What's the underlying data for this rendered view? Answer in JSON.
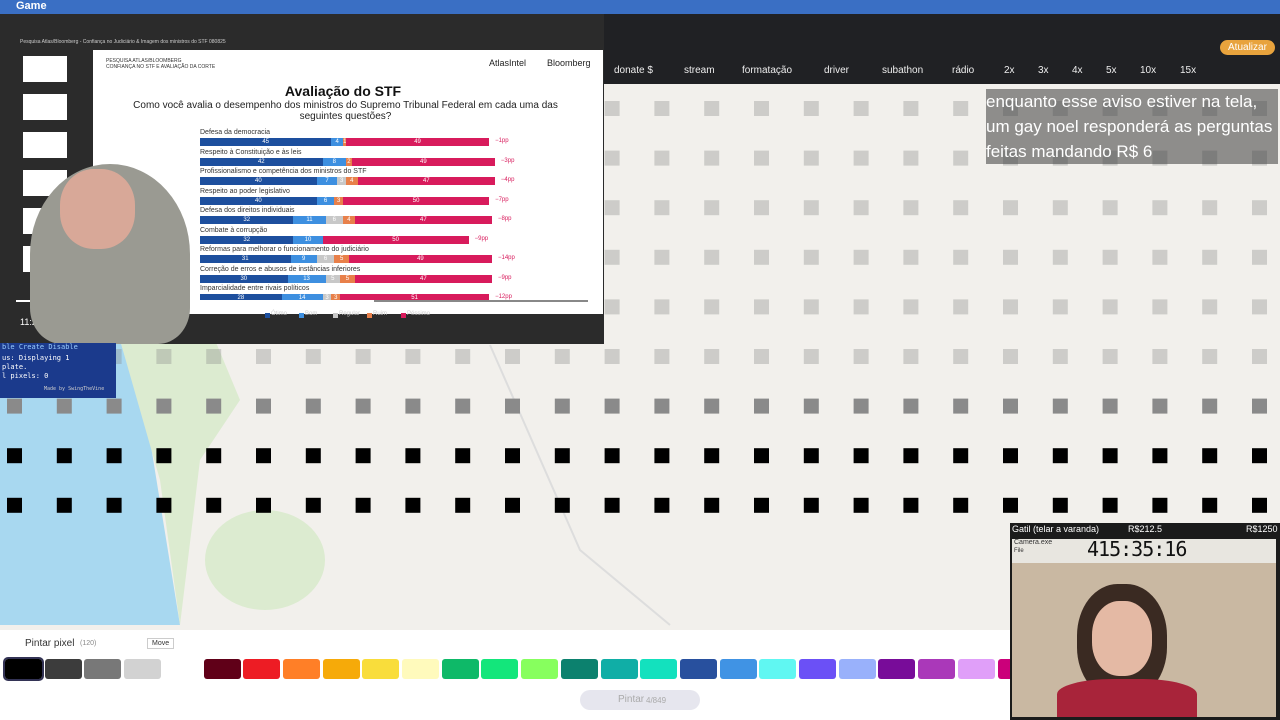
{
  "window_title": "Game",
  "browser": {
    "bookmarks": [
      "donate $",
      "stream",
      "formatação",
      "driver",
      "subathon",
      "rádio",
      "2x",
      "3x",
      "4x",
      "5x",
      "10x",
      "15x"
    ],
    "update_button": "Atualizar"
  },
  "overlay_notice": "enquanto esse aviso estiver na tela, um gay noel responderá as perguntas feitas mandando R$ 6",
  "video": {
    "pdf_title": "Pesquisa Atlas/Bloomberg - Confiança no Judiciário & Imagem dos ministros do STF 080825",
    "time": "11:22 / 18:05",
    "slide": {
      "header_left": [
        "PESQUISA ATLAS/BLOOMBERG",
        "CONFIANÇA NO STF E AVALIAÇÃO DA CORTE"
      ],
      "brands": [
        "AtlasIntel",
        "Bloomberg"
      ],
      "title": "Avaliação do STF",
      "subtitle": "Como você avalia o desempenho dos ministros do Supremo Tribunal Federal em cada uma das seguintes questões?",
      "legend": [
        {
          "name": "Ótimo",
          "color": "#1d4f9e"
        },
        {
          "name": "Bom",
          "color": "#3d8fe0"
        },
        {
          "name": "Regular",
          "color": "#c8c8c8"
        },
        {
          "name": "Ruim",
          "color": "#e8804a"
        },
        {
          "name": "Péssimo",
          "color": "#d81b5c"
        }
      ],
      "rows": [
        {
          "label": "Defesa da democracia",
          "values": [
            45,
            4,
            null,
            1,
            49
          ],
          "diff": "−1pp"
        },
        {
          "label": "Respeito à Constituição e às leis",
          "values": [
            42,
            8,
            null,
            2,
            49
          ],
          "diff": "−3pp"
        },
        {
          "label": "Profissionalismo e competência dos ministros do STF",
          "values": [
            40,
            7,
            3,
            4,
            47
          ],
          "diff": "−4pp"
        },
        {
          "label": "Respeito ao poder legislativo",
          "values": [
            40,
            6,
            null,
            3,
            50
          ],
          "diff": "−7pp"
        },
        {
          "label": "Defesa dos direitos individuais",
          "values": [
            32,
            11,
            6,
            4,
            47
          ],
          "diff": "−8pp"
        },
        {
          "label": "Combate à corrupção",
          "values": [
            32,
            10,
            null,
            null,
            50
          ],
          "diff": "−9pp"
        },
        {
          "label": "Reformas para melhorar o funcionamento do judiciário",
          "values": [
            31,
            9,
            6,
            5,
            49
          ],
          "diff": "−14pp"
        },
        {
          "label": "Correção de erros e abusos de instâncias inferiores",
          "values": [
            30,
            13,
            5,
            5,
            47
          ],
          "diff": "−9pp"
        },
        {
          "label": "Imparcialidade entre rivais políticos",
          "values": [
            28,
            14,
            3,
            3,
            51
          ],
          "diff": "−12pp"
        }
      ]
    }
  },
  "console": {
    "menu": "ble  Create  Disable",
    "lines": [
      "us: Displaying 1",
      "plate.",
      "l pixels: 0"
    ],
    "credit": "Made by SwingTheVine"
  },
  "toolbar": {
    "paint_label": "Pintar pixel",
    "count": "(120)",
    "move": "Move",
    "paint_button": "Pintar",
    "paint_counter": "4/849",
    "palette": [
      "#000000",
      "#3c3c3c",
      "#787878",
      "#d2d2d2",
      "#ffffff",
      "#600018",
      "#ed1c24",
      "#ff7f27",
      "#f6aa09",
      "#f9dd3b",
      "#fffabc",
      "#0eb968",
      "#13e67b",
      "#87ff5e",
      "#0c816e",
      "#10aea6",
      "#13e1be",
      "#28509e",
      "#4093e4",
      "#60f7f2",
      "#6b50f6",
      "#99b1fb",
      "#780c99",
      "#aa38b9",
      "#e09ff9",
      "#cb007a"
    ]
  },
  "goal": {
    "title": "Gatil (telar a varanda)",
    "current": "R$212.5",
    "target": "R$1250",
    "timer": "415:35:16",
    "app": "Camera.exe",
    "menu": "File"
  }
}
